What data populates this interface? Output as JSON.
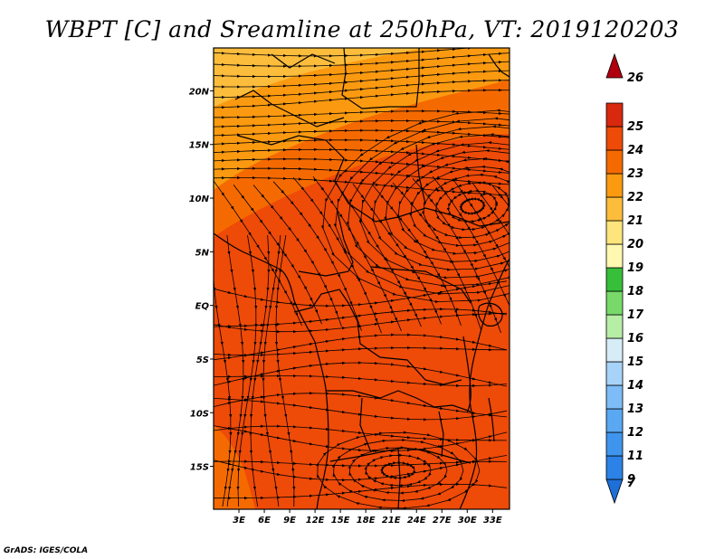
{
  "title": "WBPT [C] and Sreamline at 250hPa, VT: 2019120203",
  "credit": "GrADS: IGES/COLA",
  "lat_ticks": [
    {
      "value": 20,
      "label": "20N"
    },
    {
      "value": 15,
      "label": "15N"
    },
    {
      "value": 10,
      "label": "10N"
    },
    {
      "value": 5,
      "label": "5N"
    },
    {
      "value": 0,
      "label": "EQ"
    },
    {
      "value": -5,
      "label": "5S"
    },
    {
      "value": -10,
      "label": "10S"
    },
    {
      "value": -15,
      "label": "15S"
    }
  ],
  "lon_ticks": [
    {
      "value": 3,
      "label": "3E"
    },
    {
      "value": 6,
      "label": "6E"
    },
    {
      "value": 9,
      "label": "9E"
    },
    {
      "value": 12,
      "label": "12E"
    },
    {
      "value": 15,
      "label": "15E"
    },
    {
      "value": 18,
      "label": "18E"
    },
    {
      "value": 21,
      "label": "21E"
    },
    {
      "value": 24,
      "label": "24E"
    },
    {
      "value": 27,
      "label": "27E"
    },
    {
      "value": 30,
      "label": "30E"
    },
    {
      "value": 33,
      "label": "33E"
    }
  ],
  "extent": {
    "lon_min": 0,
    "lon_max": 35,
    "lat_min": -19,
    "lat_max": 24
  },
  "colorbar": [
    {
      "label": "7",
      "color": "#1e6fd8"
    },
    {
      "label": "9",
      "color": "#2c82e6"
    },
    {
      "label": "11",
      "color": "#3f95ee"
    },
    {
      "label": "12",
      "color": "#5aa8f2"
    },
    {
      "label": "13",
      "color": "#7dbcf6"
    },
    {
      "label": "14",
      "color": "#a7d3f8"
    },
    {
      "label": "15",
      "color": "#d6ecf6"
    },
    {
      "label": "16",
      "color": "#b6eea6"
    },
    {
      "label": "17",
      "color": "#78d96a"
    },
    {
      "label": "18",
      "color": "#37be3a"
    },
    {
      "label": "19",
      "color": "#fff8b0"
    },
    {
      "label": "20",
      "color": "#fde47c"
    },
    {
      "label": "21",
      "color": "#fdbd3c"
    },
    {
      "label": "22",
      "color": "#fb9a10"
    },
    {
      "label": "23",
      "color": "#f56a00"
    },
    {
      "label": "24",
      "color": "#ee4a08"
    },
    {
      "label": "25",
      "color": "#d8280e"
    },
    {
      "label": "26",
      "color": "#b00010"
    }
  ],
  "colorbar_top_label": "26",
  "field_colors": {
    "c21": "#fdbd3c",
    "c22": "#fb9a10",
    "c23": "#f56a00",
    "c24": "#ee4a08"
  }
}
